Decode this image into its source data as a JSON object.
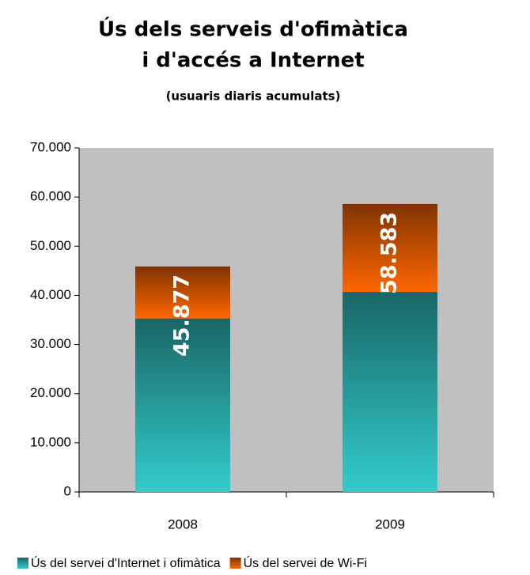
{
  "chart_data": {
    "type": "stacked_bar",
    "title": [
      "Ús dels serveis d'ofimàtica",
      "i d'accés a Internet"
    ],
    "subtitle": "(usuaris diaris acumulats)",
    "categories": [
      "2008",
      "2009"
    ],
    "series": [
      {
        "name": "Ús del servei d'Internet i ofimàtica",
        "color": "#33cccc",
        "values": [
          35300,
          40700
        ]
      },
      {
        "name": "Ús del servei de Wi-Fi",
        "color": "#ff6600",
        "values": [
          10577,
          17883
        ]
      }
    ],
    "totals": {
      "values": [
        45877,
        58583
      ],
      "value_labels": [
        "45.877",
        "58.583"
      ]
    },
    "ylim": [
      0,
      70000
    ],
    "yticks": [
      0,
      {
        "value": 10000,
        "label": "10.000"
      },
      {
        "value": 20000,
        "label": "20.000"
      },
      {
        "value": 30000,
        "label": "30.000"
      },
      {
        "value": 40000,
        "label": "40.000"
      },
      {
        "value": 50000,
        "label": "50.000"
      },
      {
        "value": 60000,
        "label": "60.000"
      },
      {
        "value": 70000,
        "label": "70.000"
      }
    ],
    "plot_background": "#c0c0c0"
  }
}
